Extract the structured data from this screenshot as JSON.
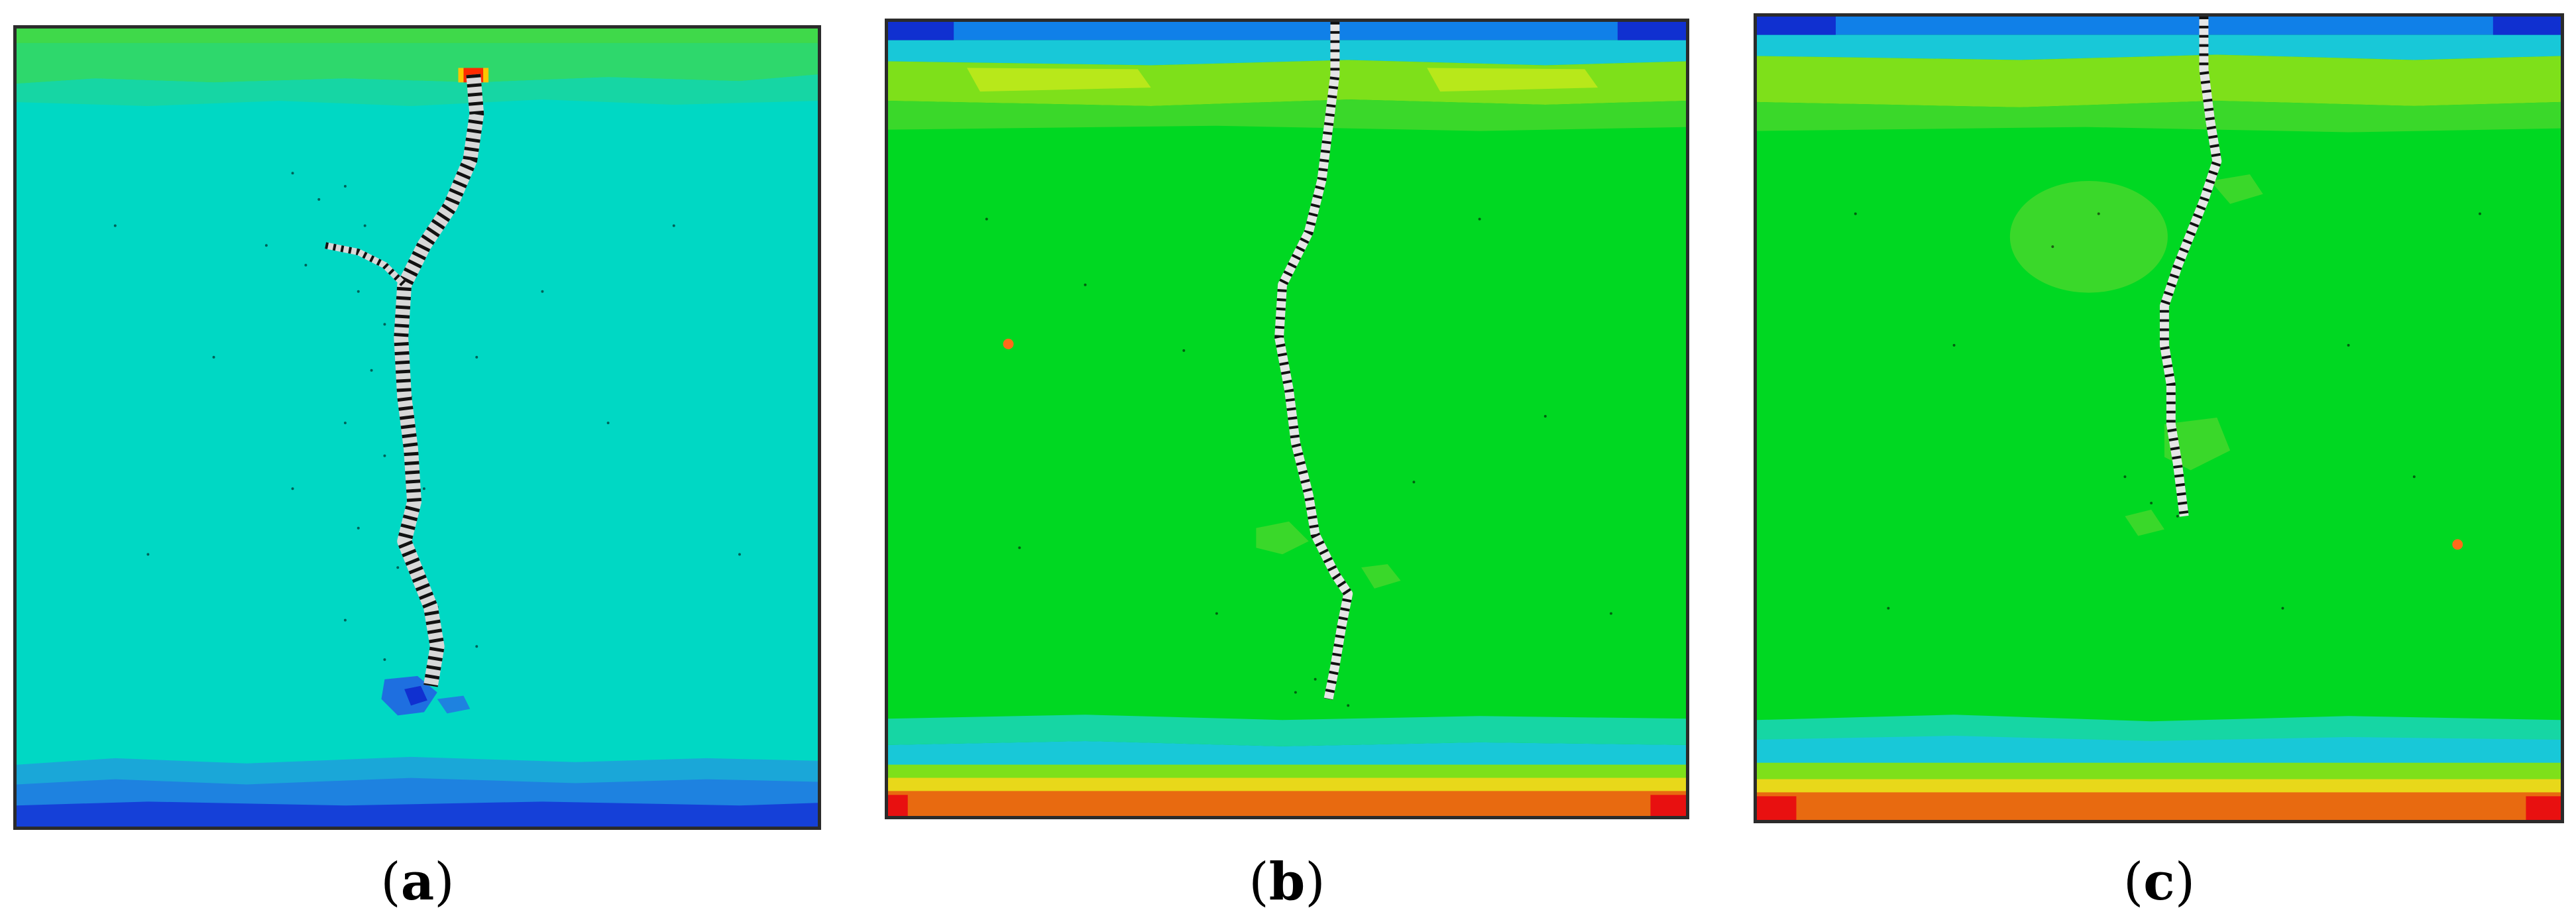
{
  "figure": {
    "panels": [
      {
        "label": "a",
        "paren_open": "(",
        "paren_close": ")",
        "field_color": "#00d8c4"
      },
      {
        "label": "b",
        "paren_open": "(",
        "paren_close": ")",
        "field_color": "#00d822"
      },
      {
        "label": "c",
        "paren_open": "(",
        "paren_close": ")",
        "field_color": "#00d822"
      }
    ]
  }
}
